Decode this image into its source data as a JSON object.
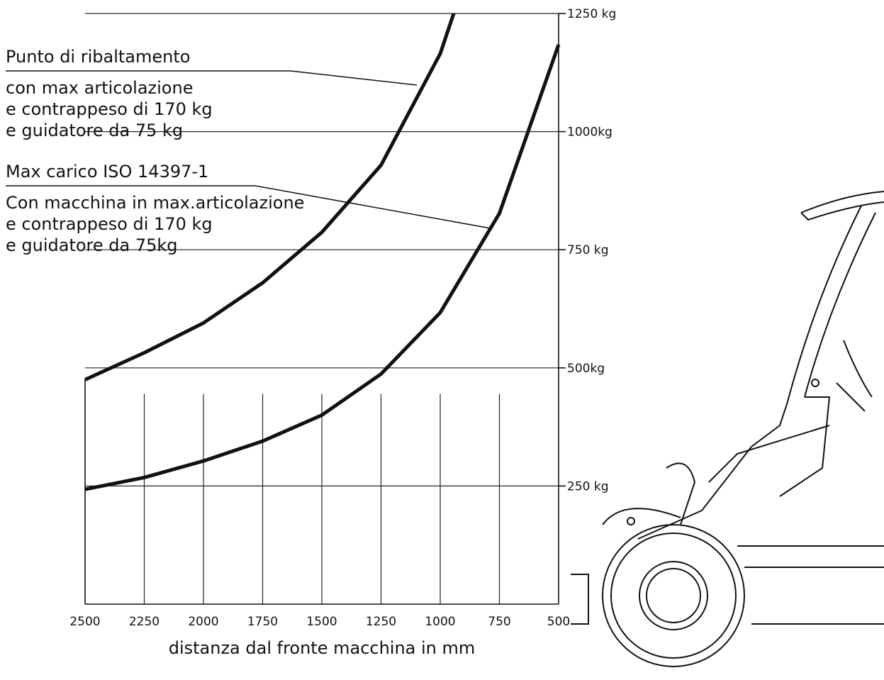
{
  "chart_data": {
    "type": "line",
    "x_label": "distanza dal fronte macchina in mm",
    "xlim": [
      2500,
      500
    ],
    "xticks": [
      2500,
      2250,
      2000,
      1750,
      1500,
      1250,
      1000,
      750,
      500
    ],
    "ylim": [
      0,
      1250
    ],
    "yticks": [
      {
        "value": 250,
        "label": "250 kg"
      },
      {
        "value": 500,
        "label": "500kg"
      },
      {
        "value": 750,
        "label": "750 kg"
      },
      {
        "value": 1000,
        "label": "1000kg"
      },
      {
        "value": 1250,
        "label": "1250 kg"
      }
    ],
    "grid": true,
    "series": [
      {
        "name": "Punto di ribaltamento",
        "description": [
          "con max articolazione",
          "e contrappeso di 170 kg",
          "e guidatore da 75 kg"
        ],
        "color": "#111111",
        "x": [
          2500,
          2250,
          2000,
          1750,
          1500,
          1250,
          1000,
          943
        ],
        "values": [
          475,
          532,
          595,
          680,
          787,
          929,
          1165,
          1250
        ]
      },
      {
        "name": "Max carico ISO 14397-1",
        "description": [
          "Con macchina in max.articolazione",
          "e contrappeso di 170 kg",
          "e guidatore da 75kg"
        ],
        "color": "#111111",
        "x": [
          2500,
          2250,
          2000,
          1750,
          1500,
          1250,
          1000,
          750,
          500
        ],
        "values": [
          243,
          268,
          303,
          345,
          400,
          487,
          617,
          827,
          1184
        ]
      }
    ]
  }
}
